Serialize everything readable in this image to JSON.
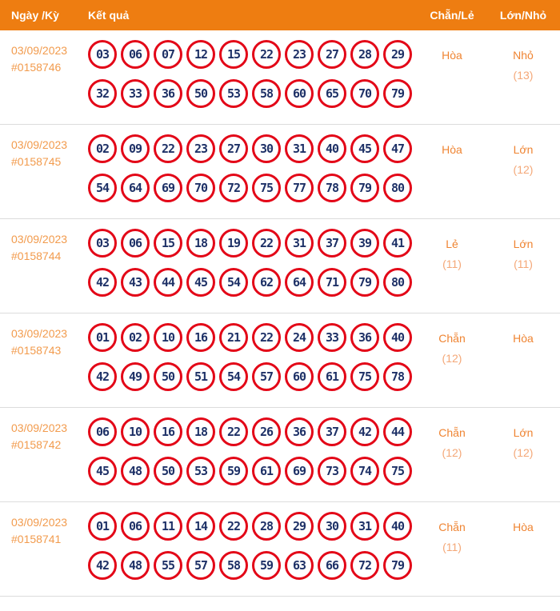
{
  "header": {
    "col_date": "Ngày /Kỳ",
    "col_result": "Kết quả",
    "col_even_odd": "Chẵn/Lẻ",
    "col_big_small": "Lớn/Nhỏ"
  },
  "colors": {
    "header_bg": "#EE7D11",
    "header_text": "#FFFFFF",
    "date_text": "#F29B4D",
    "status_label_text": "#EF8432",
    "status_count_text": "#F4A878",
    "ball_border": "#E30617",
    "ball_number_text": "#1E3167",
    "row_divider": "#DCDCDC"
  },
  "rows": [
    {
      "date": "03/09/2023",
      "draw_id": "#0158746",
      "numbers_line1": [
        "03",
        "06",
        "07",
        "12",
        "15",
        "22",
        "23",
        "27",
        "28",
        "29"
      ],
      "numbers_line2": [
        "32",
        "33",
        "36",
        "50",
        "53",
        "58",
        "60",
        "65",
        "70",
        "79"
      ],
      "even_odd": "Hòa",
      "even_odd_count": "",
      "big_small": "Nhỏ",
      "big_small_count": "(13)"
    },
    {
      "date": "03/09/2023",
      "draw_id": "#0158745",
      "numbers_line1": [
        "02",
        "09",
        "22",
        "23",
        "27",
        "30",
        "31",
        "40",
        "45",
        "47"
      ],
      "numbers_line2": [
        "54",
        "64",
        "69",
        "70",
        "72",
        "75",
        "77",
        "78",
        "79",
        "80"
      ],
      "even_odd": "Hòa",
      "even_odd_count": "",
      "big_small": "Lớn",
      "big_small_count": "(12)"
    },
    {
      "date": "03/09/2023",
      "draw_id": "#0158744",
      "numbers_line1": [
        "03",
        "06",
        "15",
        "18",
        "19",
        "22",
        "31",
        "37",
        "39",
        "41"
      ],
      "numbers_line2": [
        "42",
        "43",
        "44",
        "45",
        "54",
        "62",
        "64",
        "71",
        "79",
        "80"
      ],
      "even_odd": "Lẻ",
      "even_odd_count": "(11)",
      "big_small": "Lớn",
      "big_small_count": "(11)"
    },
    {
      "date": "03/09/2023",
      "draw_id": "#0158743",
      "numbers_line1": [
        "01",
        "02",
        "10",
        "16",
        "21",
        "22",
        "24",
        "33",
        "36",
        "40"
      ],
      "numbers_line2": [
        "42",
        "49",
        "50",
        "51",
        "54",
        "57",
        "60",
        "61",
        "75",
        "78"
      ],
      "even_odd": "Chẵn",
      "even_odd_count": "(12)",
      "big_small": "Hòa",
      "big_small_count": ""
    },
    {
      "date": "03/09/2023",
      "draw_id": "#0158742",
      "numbers_line1": [
        "06",
        "10",
        "16",
        "18",
        "22",
        "26",
        "36",
        "37",
        "42",
        "44"
      ],
      "numbers_line2": [
        "45",
        "48",
        "50",
        "53",
        "59",
        "61",
        "69",
        "73",
        "74",
        "75"
      ],
      "even_odd": "Chẵn",
      "even_odd_count": "(12)",
      "big_small": "Lớn",
      "big_small_count": "(12)"
    },
    {
      "date": "03/09/2023",
      "draw_id": "#0158741",
      "numbers_line1": [
        "01",
        "06",
        "11",
        "14",
        "22",
        "28",
        "29",
        "30",
        "31",
        "40"
      ],
      "numbers_line2": [
        "42",
        "48",
        "55",
        "57",
        "58",
        "59",
        "63",
        "66",
        "72",
        "79"
      ],
      "even_odd": "Chẵn",
      "even_odd_count": "(11)",
      "big_small": "Hòa",
      "big_small_count": ""
    }
  ]
}
